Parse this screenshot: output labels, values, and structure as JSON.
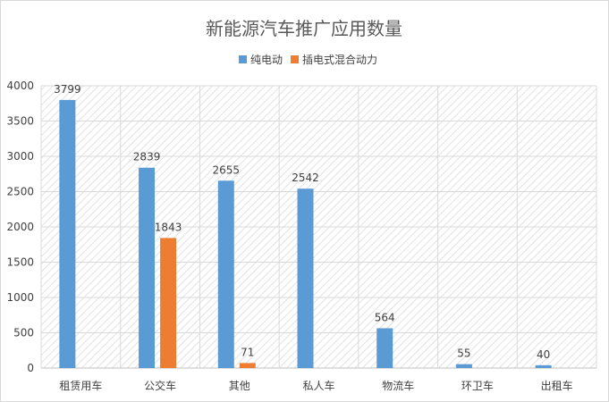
{
  "chart_data": {
    "type": "bar",
    "title": "新能源汽车推广应用数量",
    "xlabel": "",
    "ylabel": "",
    "categories": [
      "租赁用车",
      "公交车",
      "其他",
      "私人车",
      "物流车",
      "环卫车",
      "出租车"
    ],
    "series": [
      {
        "name": "纯电动",
        "color": "#5b9bd5",
        "values": [
          3799,
          2839,
          2655,
          2542,
          564,
          55,
          40
        ]
      },
      {
        "name": "插电式混合动力",
        "color": "#ed7d31",
        "values": [
          null,
          1843,
          71,
          null,
          null,
          null,
          null
        ]
      }
    ],
    "ylim": [
      0,
      4000
    ],
    "yticks": [
      0,
      500,
      1000,
      1500,
      2000,
      2500,
      3000,
      3500,
      4000
    ],
    "grid": true,
    "legend": "top-center",
    "data_labels": true
  }
}
